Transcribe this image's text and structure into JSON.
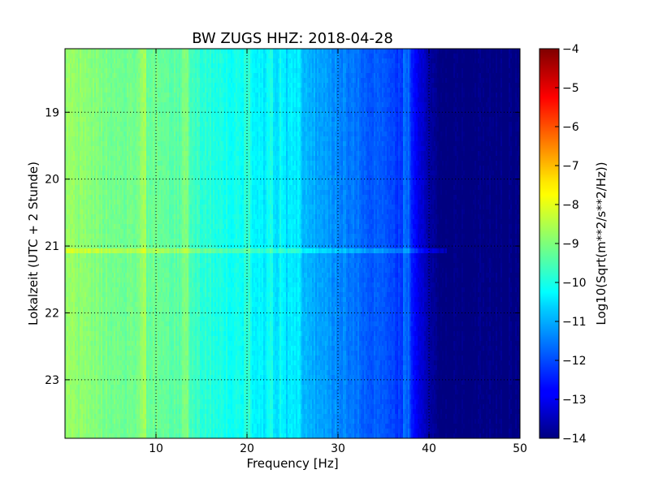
{
  "chart_data": {
    "type": "heatmap",
    "title": "BW ZUGS HHZ: 2018-04-28",
    "xlabel": "Frequency [Hz]",
    "ylabel": "Lokalzeit (UTC + 2 Stunde)",
    "xlim": [
      0,
      50
    ],
    "ylim": [
      23.875,
      18.05
    ],
    "x_ticks": [
      10,
      20,
      30,
      40,
      50
    ],
    "x_tick_labels": [
      "10",
      "20",
      "30",
      "40",
      "50"
    ],
    "y_ticks": [
      19,
      20,
      21,
      22,
      23
    ],
    "y_tick_labels": [
      "19",
      "20",
      "21",
      "22",
      "23"
    ],
    "grid": true,
    "colormap": "jet",
    "colorbar": {
      "label": "Log10(Sqrt(m**2/s**2/Hz))",
      "range": [
        -14,
        -4
      ],
      "ticks": [
        -4,
        -5,
        -6,
        -7,
        -8,
        -9,
        -10,
        -11,
        -12,
        -13,
        -14
      ],
      "tick_labels": [
        "−4",
        "−5",
        "−6",
        "−7",
        "−8",
        "−9",
        "−10",
        "−11",
        "−12",
        "−13",
        "−14"
      ]
    },
    "spectrum_profile": {
      "frequency_hz": [
        0,
        5,
        10,
        13,
        15,
        20,
        25,
        30,
        35,
        38,
        39.5,
        41,
        45,
        50
      ],
      "log10_amplitude": [
        -8.8,
        -9.1,
        -9.2,
        -9.4,
        -9.8,
        -10.2,
        -10.8,
        -11.4,
        -12.0,
        -12.3,
        -13.4,
        -14.0,
        -14.0,
        -14.0
      ]
    },
    "line_features_hz": [
      8.5,
      13.2,
      20.0,
      22.5,
      24.0,
      24.8,
      25.5,
      37.5
    ],
    "event_time": 21.08
  }
}
